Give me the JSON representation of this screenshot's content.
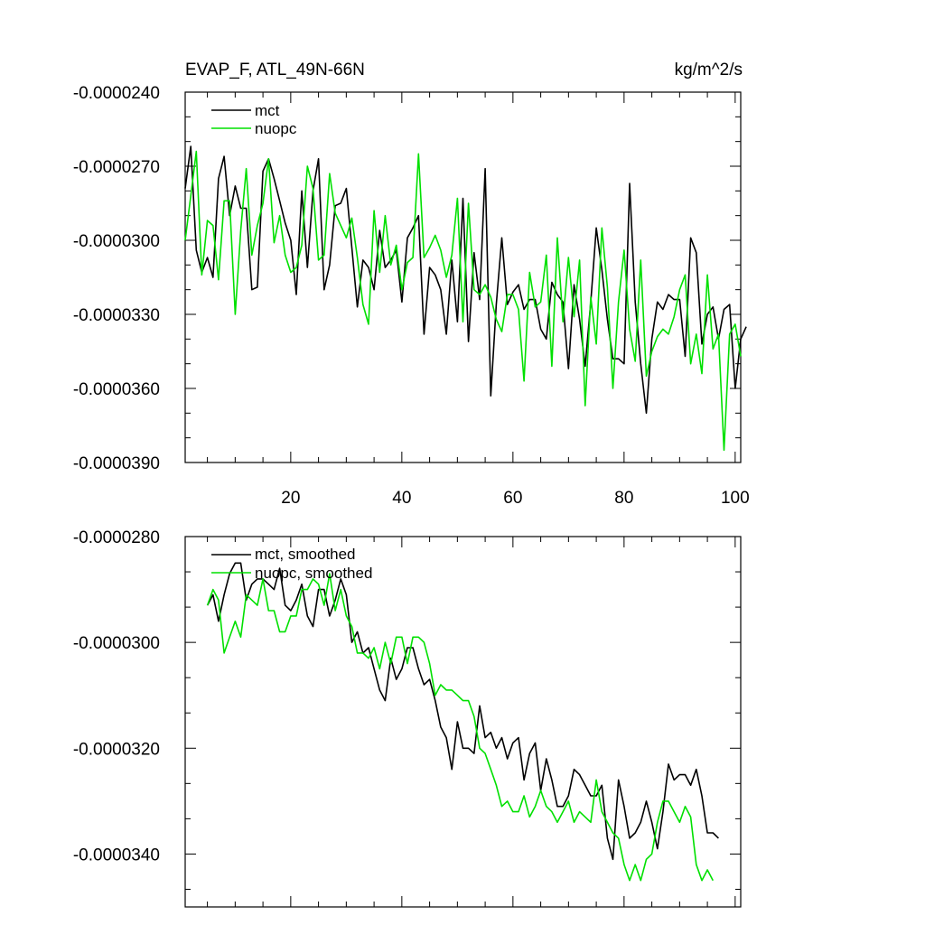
{
  "chart_data": [
    {
      "type": "line",
      "title": "EVAP_F, ATL_49N-66N",
      "units": "kg/m^2/s",
      "xlim": [
        1,
        101
      ],
      "ylim": [
        -3.9e-05,
        -2.4e-05
      ],
      "xticks": [
        20,
        40,
        60,
        80,
        100
      ],
      "xtick_labels": [
        "20",
        "40",
        "60",
        "80",
        "100"
      ],
      "yticks": [
        -2.4e-05,
        -2.7e-05,
        -3e-05,
        -3.3e-05,
        -3.6e-05,
        -3.9e-05
      ],
      "ytick_labels": [
        "-0.0000240",
        "-0.0000270",
        "-0.0000300",
        "-0.0000330",
        "-0.0000360",
        "-0.0000390"
      ],
      "grid": false,
      "legend": "top-left",
      "series": [
        {
          "name": "mct",
          "color": "#000000",
          "x_start": 1,
          "values": [
            -2.79e-05,
            -2.62e-05,
            -3.04e-05,
            -3.13e-05,
            -3.07e-05,
            -3.15e-05,
            -2.75e-05,
            -2.66e-05,
            -2.9e-05,
            -2.78e-05,
            -2.87e-05,
            -2.87e-05,
            -3.2e-05,
            -3.19e-05,
            -2.72e-05,
            -2.67e-05,
            -2.75e-05,
            -2.84e-05,
            -2.93e-05,
            -3e-05,
            -3.22e-05,
            -2.8e-05,
            -3.11e-05,
            -2.8e-05,
            -2.67e-05,
            -3.2e-05,
            -3.1e-05,
            -2.86e-05,
            -2.85e-05,
            -2.79e-05,
            -3.03e-05,
            -3.27e-05,
            -3.08e-05,
            -3.11e-05,
            -3.2e-05,
            -2.96e-05,
            -3.11e-05,
            -3.08e-05,
            -3.04e-05,
            -3.25e-05,
            -2.99e-05,
            -2.95e-05,
            -2.9e-05,
            -3.38e-05,
            -3.11e-05,
            -3.14e-05,
            -3.2e-05,
            -3.38e-05,
            -3.08e-05,
            -3.33e-05,
            -2.83e-05,
            -3.41e-05,
            -3.05e-05,
            -3.24e-05,
            -2.71e-05,
            -3.63e-05,
            -3.26e-05,
            -2.99e-05,
            -3.26e-05,
            -3.21e-05,
            -3.18e-05,
            -3.28e-05,
            -3.24e-05,
            -3.24e-05,
            -3.36e-05,
            -3.4e-05,
            -3.17e-05,
            -3.22e-05,
            -3.25e-05,
            -3.52e-05,
            -3.18e-05,
            -3.32e-05,
            -3.51e-05,
            -3.25e-05,
            -2.95e-05,
            -3.12e-05,
            -3.32e-05,
            -3.48e-05,
            -3.48e-05,
            -3.5e-05,
            -2.77e-05,
            -3.25e-05,
            -3.5e-05,
            -3.7e-05,
            -3.4e-05,
            -3.25e-05,
            -3.28e-05,
            -3.22e-05,
            -3.24e-05,
            -3.24e-05,
            -3.47e-05,
            -2.99e-05,
            -3.05e-05,
            -3.42e-05,
            -3.3e-05,
            -3.27e-05,
            -3.4e-05,
            -3.28e-05,
            -3.26e-05,
            -3.6e-05,
            -3.4e-05,
            -3.35e-05
          ]
        },
        {
          "name": "nuopc",
          "color": "#00e000",
          "x_start": 1,
          "values": [
            -3e-05,
            -2.82e-05,
            -2.64e-05,
            -3.14e-05,
            -2.92e-05,
            -2.94e-05,
            -3.16e-05,
            -2.84e-05,
            -2.84e-05,
            -3.3e-05,
            -2.96e-05,
            -2.71e-05,
            -3.06e-05,
            -2.94e-05,
            -2.85e-05,
            -2.67e-05,
            -3.01e-05,
            -2.9e-05,
            -3.06e-05,
            -3.13e-05,
            -3.11e-05,
            -3.02e-05,
            -2.7e-05,
            -2.79e-05,
            -3.08e-05,
            -3.06e-05,
            -2.73e-05,
            -2.89e-05,
            -2.94e-05,
            -2.99e-05,
            -2.91e-05,
            -3.07e-05,
            -3.26e-05,
            -3.34e-05,
            -2.88e-05,
            -3.13e-05,
            -2.9e-05,
            -3.1e-05,
            -3.02e-05,
            -3.2e-05,
            -3.09e-05,
            -3.07e-05,
            -2.65e-05,
            -3.07e-05,
            -3.03e-05,
            -2.98e-05,
            -3.04e-05,
            -3.15e-05,
            -3.06e-05,
            -2.83e-05,
            -3.33e-05,
            -2.85e-05,
            -3.2e-05,
            -3.22e-05,
            -3.18e-05,
            -3.23e-05,
            -3.32e-05,
            -3.37e-05,
            -3.22e-05,
            -3.22e-05,
            -3.28e-05,
            -3.57e-05,
            -3.13e-05,
            -3.27e-05,
            -3.25e-05,
            -3.06e-05,
            -3.51e-05,
            -2.99e-05,
            -3.33e-05,
            -3.07e-05,
            -3.31e-05,
            -3.08e-05,
            -3.67e-05,
            -3.23e-05,
            -3.42e-05,
            -2.95e-05,
            -3.19e-05,
            -3.6e-05,
            -3.25e-05,
            -3.04e-05,
            -3.36e-05,
            -3.49e-05,
            -3.08e-05,
            -3.55e-05,
            -3.45e-05,
            -3.39e-05,
            -3.36e-05,
            -3.38e-05,
            -3.31e-05,
            -3.2e-05,
            -3.14e-05,
            -3.5e-05,
            -3.38e-05,
            -3.54e-05,
            -3.14e-05,
            -3.44e-05,
            -3.38e-05,
            -3.85e-05,
            -3.38e-05,
            -3.34e-05,
            -3.47e-05
          ]
        }
      ]
    },
    {
      "type": "line",
      "xlim": [
        1,
        101
      ],
      "ylim": [
        -3.5e-05,
        -2.8e-05
      ],
      "xticks": [
        20,
        40,
        60,
        80,
        100
      ],
      "yticks": [
        -2.8e-05,
        -3e-05,
        -3.2e-05,
        -3.4e-05
      ],
      "ytick_labels": [
        "-0.0000280",
        "-0.0000300",
        "-0.0000320",
        "-0.0000340"
      ],
      "grid": false,
      "legend": "top-left",
      "series": [
        {
          "name": "mct, smoothed",
          "color": "#000000",
          "x_start": 5,
          "values": [
            -2.93e-05,
            -2.91e-05,
            -2.96e-05,
            -2.91e-05,
            -2.87e-05,
            -2.85e-05,
            -2.85e-05,
            -2.92e-05,
            -2.89e-05,
            -2.88e-05,
            -2.88e-05,
            -2.89e-05,
            -2.9e-05,
            -2.86e-05,
            -2.93e-05,
            -2.94e-05,
            -2.92e-05,
            -2.89e-05,
            -2.95e-05,
            -2.97e-05,
            -2.9e-05,
            -2.9e-05,
            -2.95e-05,
            -2.92e-05,
            -2.88e-05,
            -2.91e-05,
            -3e-05,
            -2.98e-05,
            -3.02e-05,
            -3.01e-05,
            -3.05e-05,
            -3.09e-05,
            -3.11e-05,
            -3.03e-05,
            -3.07e-05,
            -3.05e-05,
            -3.01e-05,
            -3.01e-05,
            -3.05e-05,
            -3.08e-05,
            -3.07e-05,
            -3.11e-05,
            -3.16e-05,
            -3.18e-05,
            -3.24e-05,
            -3.15e-05,
            -3.2e-05,
            -3.2e-05,
            -3.21e-05,
            -3.12e-05,
            -3.18e-05,
            -3.17e-05,
            -3.2e-05,
            -3.18e-05,
            -3.22e-05,
            -3.19e-05,
            -3.18e-05,
            -3.26e-05,
            -3.21e-05,
            -3.19e-05,
            -3.28e-05,
            -3.22e-05,
            -3.26e-05,
            -3.31e-05,
            -3.31e-05,
            -3.29e-05,
            -3.24e-05,
            -3.25e-05,
            -3.27e-05,
            -3.29e-05,
            -3.29e-05,
            -3.27e-05,
            -3.37e-05,
            -3.41e-05,
            -3.26e-05,
            -3.31e-05,
            -3.37e-05,
            -3.36e-05,
            -3.34e-05,
            -3.3e-05,
            -3.34e-05,
            -3.39e-05,
            -3.32e-05,
            -3.23e-05,
            -3.26e-05,
            -3.25e-05,
            -3.25e-05,
            -3.27e-05,
            -3.24e-05,
            -3.29e-05,
            -3.36e-05,
            -3.36e-05,
            -3.37e-05
          ]
        },
        {
          "name": "nuopc, smoothed",
          "color": "#00e000",
          "x_start": 5,
          "values": [
            -2.93e-05,
            -2.9e-05,
            -2.92e-05,
            -3.02e-05,
            -2.99e-05,
            -2.96e-05,
            -2.99e-05,
            -2.91e-05,
            -2.92e-05,
            -2.93e-05,
            -2.88e-05,
            -2.94e-05,
            -2.94e-05,
            -2.98e-05,
            -2.98e-05,
            -2.95e-05,
            -2.95e-05,
            -2.9e-05,
            -2.9e-05,
            -2.88e-05,
            -2.89e-05,
            -2.93e-05,
            -2.87e-05,
            -2.94e-05,
            -2.9e-05,
            -2.95e-05,
            -2.97e-05,
            -3.02e-05,
            -3.02e-05,
            -3.03e-05,
            -3.01e-05,
            -3.05e-05,
            -3e-05,
            -3.04e-05,
            -2.99e-05,
            -2.99e-05,
            -3.04e-05,
            -2.99e-05,
            -2.99e-05,
            -3e-05,
            -3.04e-05,
            -3.1e-05,
            -3.08e-05,
            -3.09e-05,
            -3.09e-05,
            -3.1e-05,
            -3.11e-05,
            -3.11e-05,
            -3.14e-05,
            -3.2e-05,
            -3.21e-05,
            -3.24e-05,
            -3.27e-05,
            -3.31e-05,
            -3.3e-05,
            -3.32e-05,
            -3.32e-05,
            -3.29e-05,
            -3.33e-05,
            -3.31e-05,
            -3.28e-05,
            -3.31e-05,
            -3.32e-05,
            -3.34e-05,
            -3.32e-05,
            -3.3e-05,
            -3.34e-05,
            -3.32e-05,
            -3.33e-05,
            -3.34e-05,
            -3.26e-05,
            -3.32e-05,
            -3.34e-05,
            -3.36e-05,
            -3.37e-05,
            -3.42e-05,
            -3.45e-05,
            -3.42e-05,
            -3.45e-05,
            -3.41e-05,
            -3.4e-05,
            -3.34e-05,
            -3.3e-05,
            -3.3e-05,
            -3.32e-05,
            -3.34e-05,
            -3.31e-05,
            -3.33e-05,
            -3.42e-05,
            -3.45e-05,
            -3.43e-05,
            -3.45e-05
          ]
        }
      ]
    }
  ]
}
